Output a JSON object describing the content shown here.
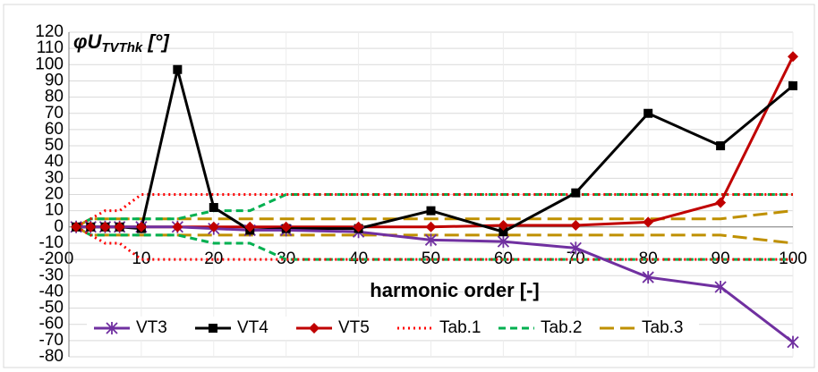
{
  "chart_data": {
    "type": "line",
    "title": "φU",
    "title_sub": "TVThk",
    "title_unit": " [°]",
    "x_label": "harmonic order [-]",
    "x": [
      1,
      3,
      5,
      7,
      10,
      15,
      20,
      25,
      30,
      40,
      50,
      60,
      70,
      80,
      90,
      100
    ],
    "xlim": [
      0,
      100
    ],
    "xticks": [
      0,
      10,
      20,
      30,
      40,
      50,
      60,
      70,
      80,
      90,
      100
    ],
    "ylim": [
      -80,
      120
    ],
    "yticks": [
      -80,
      -70,
      -60,
      -50,
      -40,
      -30,
      -20,
      -10,
      0,
      10,
      20,
      30,
      40,
      50,
      60,
      70,
      80,
      90,
      100,
      110,
      120
    ],
    "grid": true,
    "legend": "bottom",
    "series": [
      {
        "name": "VT3",
        "color": "#7030a0",
        "marker": "star",
        "values": [
          0,
          0,
          0,
          0,
          0,
          0,
          -1,
          -2,
          -2,
          -3,
          -8,
          -9,
          -13,
          -31,
          -37,
          -71
        ]
      },
      {
        "name": "VT4",
        "color": "#000000",
        "marker": "square",
        "values": [
          0,
          0,
          0,
          0,
          -1,
          97,
          12,
          -2,
          -1,
          -1,
          10,
          -3,
          21,
          70,
          50,
          87
        ]
      },
      {
        "name": "VT5",
        "color": "#c00000",
        "marker": "diamond",
        "values": [
          0,
          0,
          0,
          0,
          0,
          0,
          0,
          0,
          0,
          0,
          0,
          1,
          1,
          3,
          15,
          105
        ]
      },
      {
        "name": "Tab.1",
        "color": "#ff0000",
        "dash": "2 4",
        "values": [
          0,
          5,
          10,
          10,
          20,
          20,
          20,
          20,
          20,
          20,
          20,
          20,
          20,
          20,
          20,
          20
        ],
        "values_low": [
          0,
          -5,
          -10,
          -10,
          -20,
          -20,
          -20,
          -20,
          -20,
          -20,
          -20,
          -20,
          -20,
          -20,
          -20,
          -20
        ]
      },
      {
        "name": "Tab.2",
        "color": "#00b050",
        "dash": "8 5",
        "values": [
          0,
          5,
          5,
          5,
          5,
          5,
          10,
          10,
          20,
          20,
          20,
          20,
          20,
          20,
          20,
          20
        ],
        "values_low": [
          0,
          -5,
          -5,
          -5,
          -5,
          -5,
          -10,
          -10,
          -20,
          -20,
          -20,
          -20,
          -20,
          -20,
          -20,
          -20
        ]
      },
      {
        "name": "Tab.3",
        "color": "#bf9000",
        "dash": "16 7",
        "values": [
          0,
          5,
          5,
          5,
          5,
          5,
          5,
          5,
          5,
          5,
          5,
          5,
          5,
          5,
          5,
          10
        ],
        "values_low": [
          0,
          -5,
          -5,
          -5,
          -5,
          -5,
          -5,
          -5,
          -5,
          -5,
          -5,
          -5,
          -5,
          -5,
          -5,
          -10
        ]
      }
    ]
  }
}
